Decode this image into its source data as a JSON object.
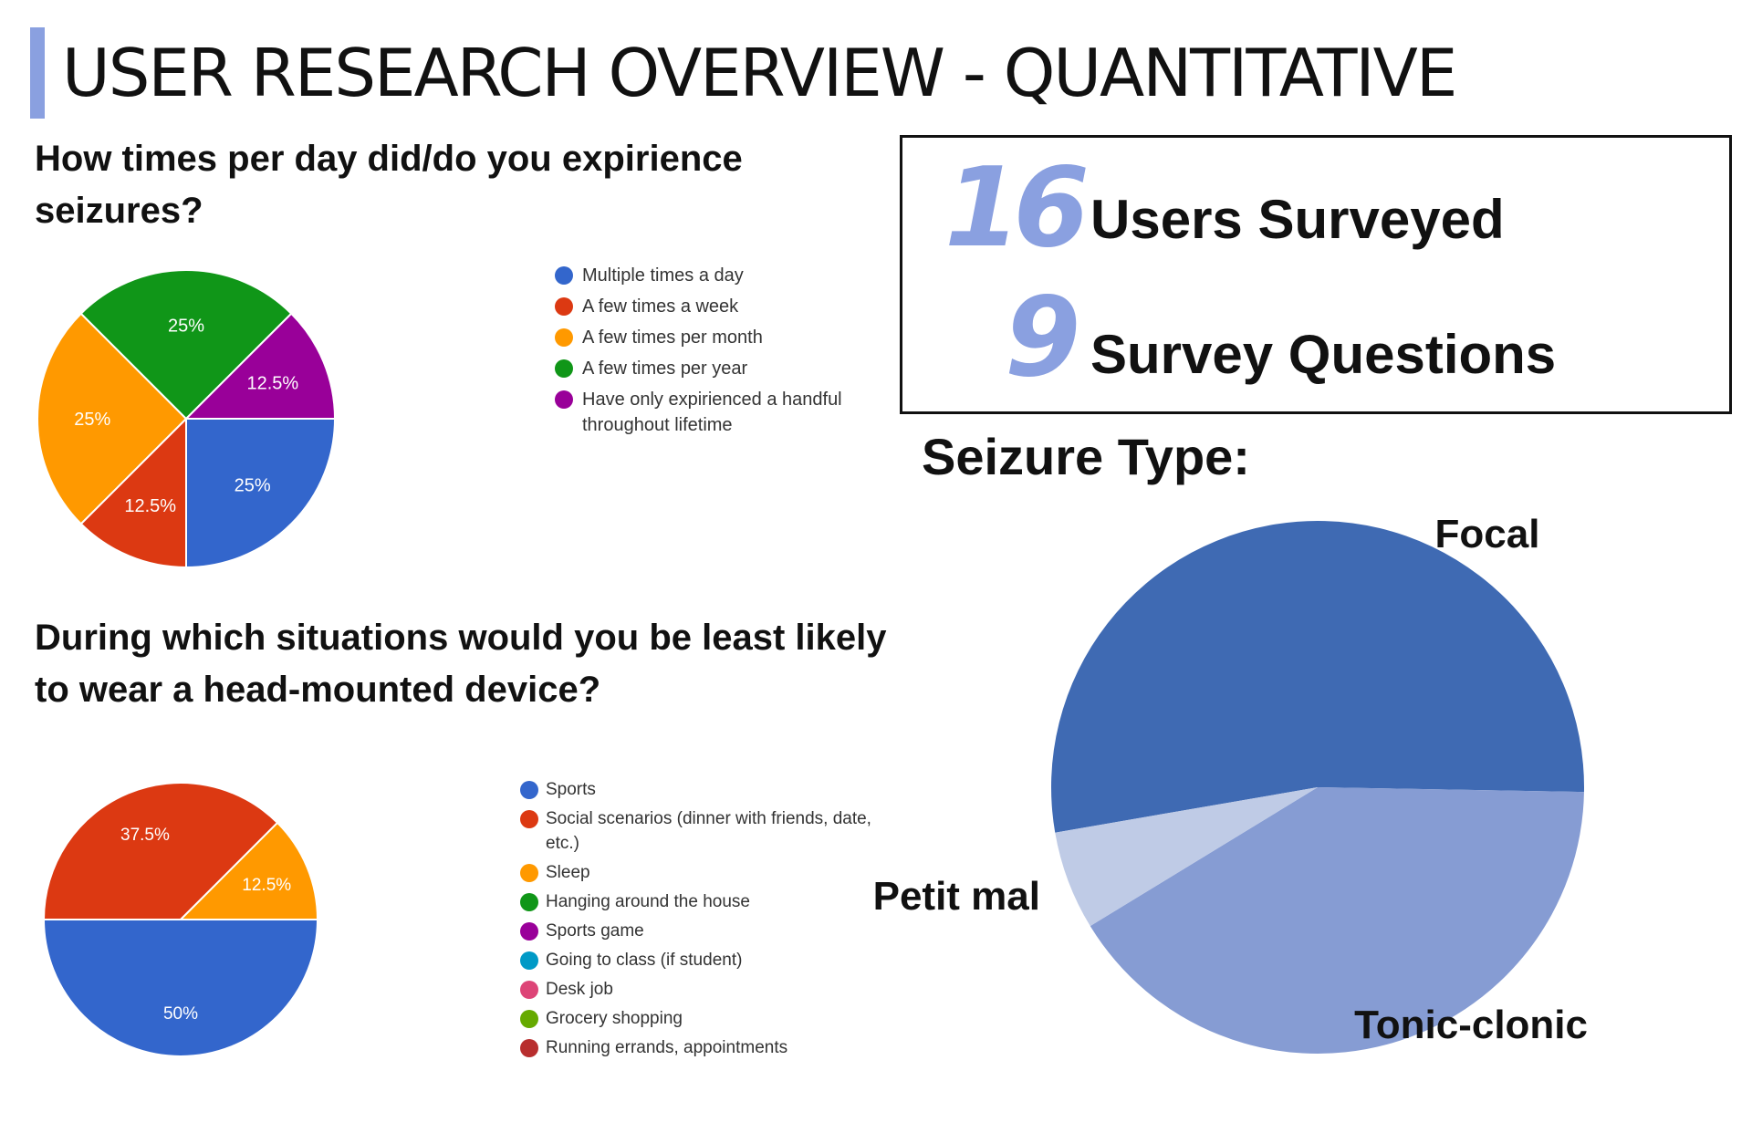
{
  "page": {
    "title": "USER RESEARCH OVERVIEW - QUANTITATIVE",
    "accent_color": "#8aa0e0"
  },
  "stats": {
    "number_color": "#8aa0e0",
    "users_surveyed": {
      "value": "16",
      "label": "Users Surveyed"
    },
    "survey_questions": {
      "value": "9",
      "label": "Survey Questions"
    }
  },
  "chart_data": [
    {
      "type": "pie",
      "title": "How times per day did/do you expirience seizures?",
      "slices": [
        {
          "label": "Multiple times a day",
          "value": 25,
          "display": "25%",
          "color": "#3366cc"
        },
        {
          "label": "A few times a week",
          "value": 12.5,
          "display": "12.5%",
          "color": "#dc3912"
        },
        {
          "label": "A few times per month",
          "value": 25,
          "display": "25%",
          "color": "#ff9900"
        },
        {
          "label": "A few times per year",
          "value": 25,
          "display": "25%",
          "color": "#109618"
        },
        {
          "label": "Have only expirienced a handful throughout lifetime",
          "value": 12.5,
          "display": "12.5%",
          "color": "#990099"
        }
      ],
      "legend_placement": "right"
    },
    {
      "type": "pie",
      "title": "During which situations would you be least likely to wear a head-mounted device?",
      "slices": [
        {
          "label": "Sports",
          "value": 50,
          "display": "50%",
          "color": "#3366cc"
        },
        {
          "label": "Social scenarios (dinner with friends, date, etc.)",
          "value": 37.5,
          "display": "37.5%",
          "color": "#dc3912"
        },
        {
          "label": "Sleep",
          "value": 12.5,
          "display": "12.5%",
          "color": "#ff9900"
        },
        {
          "label": "Hanging around the house",
          "value": 0,
          "display": "",
          "color": "#109618"
        },
        {
          "label": "Sports game",
          "value": 0,
          "display": "",
          "color": "#990099"
        },
        {
          "label": "Going to class (if student)",
          "value": 0,
          "display": "",
          "color": "#0099c6"
        },
        {
          "label": "Desk job",
          "value": 0,
          "display": "",
          "color": "#dd4477"
        },
        {
          "label": "Grocery shopping",
          "value": 0,
          "display": "",
          "color": "#66aa00"
        },
        {
          "label": "Running errands, appointments",
          "value": 0,
          "display": "",
          "color": "#b82e2e"
        }
      ],
      "legend_placement": "right"
    },
    {
      "type": "pie",
      "title": "Seizure Type:",
      "slices": [
        {
          "label": "Focal",
          "value": 53,
          "color": "#3f6ab3"
        },
        {
          "label": "Tonic-clonic",
          "value": 41,
          "color": "#869cd3"
        },
        {
          "label": "Petit mal",
          "value": 6,
          "color": "#bfcbe6"
        }
      ],
      "legend_placement": "labels-outside"
    }
  ]
}
